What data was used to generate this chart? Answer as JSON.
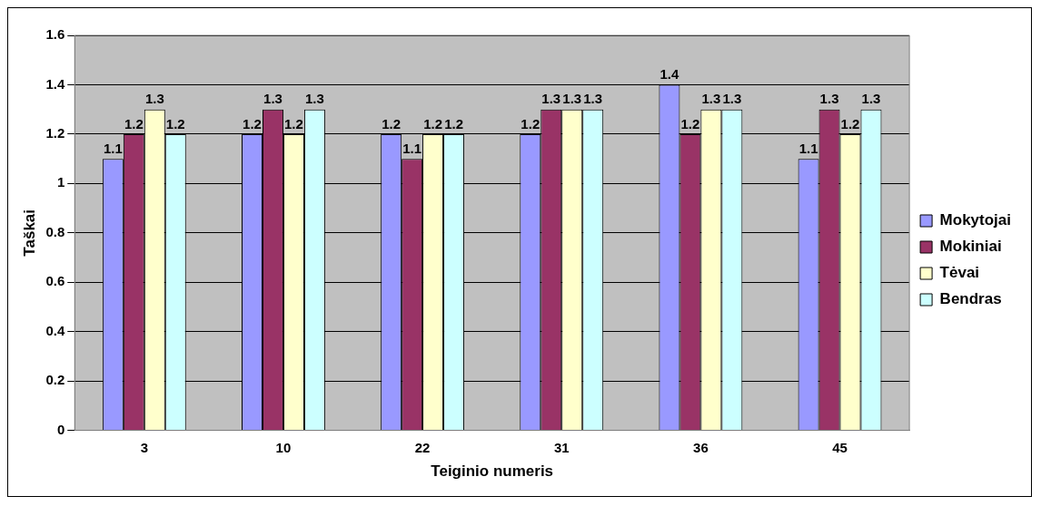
{
  "chart_data": {
    "type": "bar",
    "xlabel": "Teiginio numeris",
    "ylabel": "Taškai",
    "categories": [
      "3",
      "10",
      "22",
      "31",
      "36",
      "45"
    ],
    "series": [
      {
        "name": "Mokytojai",
        "color": "#9999ff",
        "values": [
          1.1,
          1.2,
          1.2,
          1.2,
          1.4,
          1.1
        ]
      },
      {
        "name": "Mokiniai",
        "color": "#993366",
        "values": [
          1.2,
          1.3,
          1.1,
          1.3,
          1.2,
          1.3
        ]
      },
      {
        "name": "Tėvai",
        "color": "#ffffcc",
        "values": [
          1.3,
          1.2,
          1.2,
          1.3,
          1.3,
          1.2
        ]
      },
      {
        "name": "Bendras",
        "color": "#ccffff",
        "values": [
          1.2,
          1.3,
          1.2,
          1.3,
          1.3,
          1.3
        ]
      }
    ],
    "ylim": [
      0,
      1.6
    ],
    "yticks": [
      0,
      0.2,
      0.4,
      0.6,
      0.8,
      1,
      1.2,
      1.4,
      1.6
    ],
    "grid": "y",
    "legend": "right",
    "data_labels": true
  }
}
